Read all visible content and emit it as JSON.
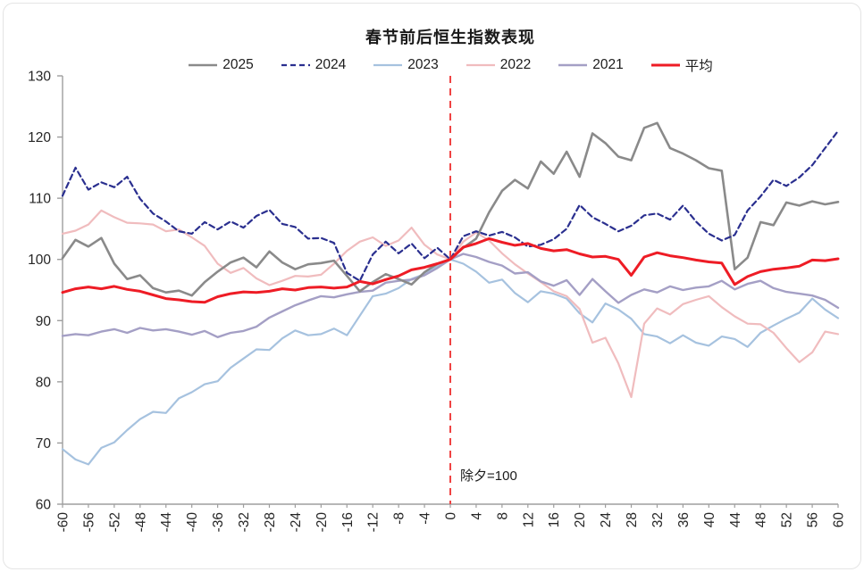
{
  "chart_data": {
    "type": "line",
    "title": "春节前后恒生指数表现",
    "xlabel": "",
    "ylabel": "",
    "xlim": [
      -60,
      60
    ],
    "ylim": [
      60,
      130
    ],
    "xticks": [
      -60,
      -56,
      -52,
      -48,
      -44,
      -40,
      -36,
      -32,
      -28,
      -24,
      -20,
      -16,
      -12,
      -8,
      -4,
      0,
      4,
      8,
      12,
      16,
      20,
      24,
      28,
      32,
      36,
      40,
      44,
      48,
      52,
      56,
      60
    ],
    "yticks": [
      60,
      70,
      80,
      90,
      100,
      110,
      120,
      130
    ],
    "grid": false,
    "legend_position": "top",
    "axis_color": "#9e9e9e",
    "tick_label_color": "#262626",
    "vline": {
      "x": 0,
      "color": "#f04343",
      "label": "除夕=100"
    },
    "x": [
      -60,
      -58,
      -56,
      -54,
      -52,
      -50,
      -48,
      -46,
      -44,
      -42,
      -40,
      -38,
      -36,
      -34,
      -32,
      -30,
      -28,
      -26,
      -24,
      -22,
      -20,
      -18,
      -16,
      -14,
      -12,
      -10,
      -8,
      -6,
      -4,
      -2,
      0,
      2,
      4,
      6,
      8,
      10,
      12,
      14,
      16,
      18,
      20,
      22,
      24,
      26,
      28,
      30,
      32,
      34,
      36,
      38,
      40,
      42,
      44,
      46,
      48,
      50,
      52,
      54,
      56,
      58,
      60
    ],
    "series": [
      {
        "name": "2025",
        "color": "#8a8a8a",
        "width": 2.6,
        "dash": "",
        "values": [
          100.2,
          103.2,
          102.1,
          103.5,
          99.3,
          96.8,
          97.4,
          95.3,
          94.6,
          94.9,
          94.1,
          96.3,
          98.0,
          99.5,
          100.3,
          98.7,
          101.3,
          99.5,
          98.4,
          99.2,
          99.4,
          99.8,
          97.3,
          94.8,
          96.3,
          97.6,
          96.8,
          95.9,
          97.9,
          99.3,
          100.0,
          101.9,
          103.4,
          107.7,
          111.2,
          113.0,
          111.6,
          116.0,
          114.0,
          117.6,
          113.5,
          120.6,
          119.0,
          116.8,
          116.2,
          121.5,
          122.3,
          118.2,
          117.3,
          116.2,
          114.9,
          114.5,
          98.4,
          100.3,
          106.1,
          105.6,
          109.3,
          108.8,
          109.5,
          109.0,
          109.4
        ]
      },
      {
        "name": "2024",
        "color": "#2a2f8f",
        "width": 2.2,
        "dash": "6 4",
        "values": [
          110.4,
          115.0,
          111.4,
          112.6,
          111.8,
          113.5,
          109.9,
          107.5,
          106.2,
          104.6,
          104.2,
          106.1,
          104.9,
          106.2,
          105.2,
          107.1,
          108.1,
          105.8,
          105.3,
          103.4,
          103.5,
          102.7,
          97.8,
          96.5,
          100.8,
          102.9,
          101.0,
          102.6,
          100.2,
          101.9,
          100.0,
          103.8,
          104.6,
          103.9,
          104.5,
          103.6,
          102.1,
          102.4,
          103.3,
          105.0,
          108.9,
          106.9,
          105.8,
          104.6,
          105.5,
          107.2,
          107.5,
          106.5,
          108.8,
          106.2,
          104.2,
          103.1,
          104.0,
          108.0,
          110.3,
          113.0,
          112.0,
          113.4,
          115.4,
          118.2,
          121.0
        ]
      },
      {
        "name": "2023",
        "color": "#a6c2df",
        "width": 2.2,
        "dash": "",
        "values": [
          69.0,
          67.3,
          66.5,
          69.2,
          70.1,
          72.1,
          73.9,
          75.1,
          74.9,
          77.3,
          78.3,
          79.6,
          80.1,
          82.3,
          83.8,
          85.3,
          85.2,
          87.1,
          88.4,
          87.6,
          87.8,
          88.7,
          87.6,
          90.8,
          94.0,
          94.4,
          95.3,
          96.8,
          97.6,
          99.0,
          100.0,
          99.3,
          98.0,
          96.2,
          96.7,
          94.5,
          93.0,
          94.8,
          94.4,
          93.6,
          91.2,
          89.7,
          92.8,
          91.8,
          90.3,
          87.8,
          87.4,
          86.3,
          87.6,
          86.4,
          85.9,
          87.4,
          87.0,
          85.7,
          88.0,
          89.2,
          90.3,
          91.3,
          93.6,
          91.8,
          90.4
        ]
      },
      {
        "name": "2022",
        "color": "#f0bcbe",
        "width": 2.2,
        "dash": "",
        "values": [
          104.2,
          104.7,
          105.7,
          108.0,
          106.9,
          106.0,
          105.9,
          105.7,
          104.6,
          104.9,
          103.6,
          102.2,
          99.3,
          97.8,
          98.6,
          96.9,
          95.8,
          96.5,
          97.3,
          97.2,
          97.5,
          99.3,
          101.4,
          102.9,
          103.6,
          102.2,
          103.1,
          105.2,
          102.4,
          100.8,
          100.0,
          102.9,
          104.4,
          103.1,
          101.0,
          99.2,
          97.7,
          96.3,
          94.8,
          94.0,
          91.9,
          86.4,
          87.2,
          83.0,
          77.5,
          89.5,
          92.0,
          91.0,
          92.7,
          93.4,
          94.0,
          92.2,
          90.7,
          89.5,
          89.4,
          88.0,
          85.5,
          83.2,
          84.8,
          88.2,
          87.8
        ]
      },
      {
        "name": "2021",
        "color": "#a49fc5",
        "width": 2.4,
        "dash": "",
        "values": [
          87.5,
          87.8,
          87.6,
          88.2,
          88.6,
          88.0,
          88.8,
          88.4,
          88.6,
          88.2,
          87.7,
          88.3,
          87.3,
          88.0,
          88.3,
          89.0,
          90.5,
          91.5,
          92.5,
          93.3,
          94.0,
          93.8,
          94.3,
          94.7,
          94.9,
          96.2,
          96.5,
          96.7,
          97.4,
          98.6,
          100.0,
          100.9,
          100.4,
          99.6,
          99.0,
          97.7,
          97.9,
          96.4,
          95.7,
          96.6,
          94.2,
          96.8,
          94.8,
          92.9,
          94.2,
          95.1,
          94.6,
          95.6,
          95.0,
          95.4,
          95.6,
          96.5,
          95.1,
          96.0,
          96.5,
          95.3,
          94.7,
          94.4,
          94.1,
          93.4,
          92.1
        ]
      },
      {
        "name": "平均",
        "color": "#ee1c25",
        "width": 3.0,
        "dash": "",
        "values": [
          94.6,
          95.2,
          95.5,
          95.2,
          95.6,
          95.1,
          94.8,
          94.2,
          93.6,
          93.4,
          93.1,
          93.0,
          93.9,
          94.4,
          94.7,
          94.6,
          94.8,
          95.2,
          95.0,
          95.4,
          95.5,
          95.3,
          95.5,
          96.4,
          96.0,
          96.7,
          97.3,
          98.3,
          98.7,
          99.3,
          100.0,
          102.0,
          102.6,
          103.4,
          102.8,
          102.3,
          102.6,
          101.8,
          101.4,
          101.6,
          100.9,
          100.4,
          100.5,
          100.0,
          97.4,
          100.4,
          101.1,
          100.6,
          100.3,
          99.9,
          99.6,
          99.4,
          95.9,
          97.2,
          98.0,
          98.4,
          98.6,
          98.9,
          99.9,
          99.8,
          100.1
        ]
      }
    ],
    "draw_order": [
      2,
      3,
      4,
      0,
      1,
      5
    ]
  }
}
